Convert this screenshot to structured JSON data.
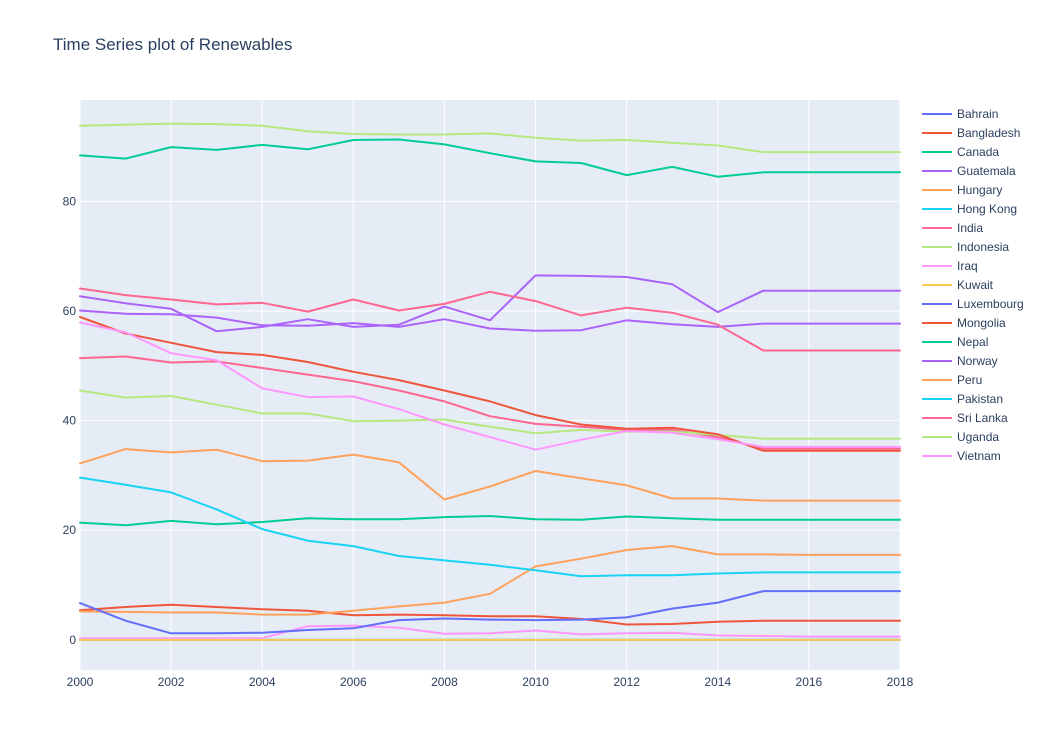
{
  "chart_data": {
    "type": "line",
    "title": "Time Series plot of Renewables",
    "xlabel": "",
    "ylabel": "",
    "xlim": [
      2000,
      2018
    ],
    "ylim": [
      -5.5,
      98.5
    ],
    "x_ticks": [
      2000,
      2002,
      2004,
      2006,
      2008,
      2010,
      2012,
      2014,
      2016,
      2018
    ],
    "y_ticks": [
      0,
      20,
      40,
      60,
      80
    ],
    "grid": true,
    "legend_position": "right",
    "x": [
      2000,
      2001,
      2002,
      2003,
      2004,
      2005,
      2006,
      2007,
      2008,
      2009,
      2010,
      2011,
      2012,
      2013,
      2014,
      2015,
      2016,
      2017,
      2018
    ],
    "series": [
      {
        "name": "Bahrain",
        "color": "#636efa",
        "values": [
          0,
          0,
          0,
          0,
          0,
          0,
          0,
          0,
          0,
          0,
          0,
          0,
          0,
          0,
          0,
          0,
          0,
          0,
          0
        ]
      },
      {
        "name": "Bangladesh",
        "color": "#EF553B",
        "values": [
          5.4,
          6.0,
          6.4,
          6.0,
          5.6,
          5.3,
          4.5,
          4.6,
          4.5,
          4.3,
          4.3,
          3.8,
          2.8,
          2.9,
          3.3,
          3.5,
          3.5,
          3.5,
          3.5
        ]
      },
      {
        "name": "Canada",
        "color": "#00cc96",
        "values": [
          88.4,
          87.8,
          89.9,
          89.4,
          90.3,
          89.5,
          91.2,
          91.3,
          90.4,
          88.8,
          87.3,
          87.0,
          84.8,
          86.3,
          84.5,
          85.3,
          85.3,
          85.3,
          85.3
        ]
      },
      {
        "name": "Guatemala",
        "color": "#ab63fa",
        "values": [
          60.1,
          59.5,
          59.4,
          58.8,
          57.4,
          57.3,
          57.8,
          57.1,
          58.5,
          56.8,
          56.4,
          56.5,
          58.3,
          57.6,
          57.1,
          57.7,
          57.7,
          57.7,
          57.7
        ]
      },
      {
        "name": "Hungary",
        "color": "#FFA15A",
        "values": [
          5.2,
          5.1,
          5.0,
          5.0,
          4.6,
          4.6,
          5.3,
          6.1,
          6.8,
          8.4,
          13.4,
          14.8,
          16.4,
          17.1,
          15.6,
          15.6,
          15.5,
          15.5,
          15.5
        ]
      },
      {
        "name": "Hong Kong",
        "color": "#19d3f3",
        "values": [
          0,
          0,
          0,
          0,
          0,
          0,
          0,
          0,
          0,
          0,
          0,
          0,
          0,
          0,
          0,
          0,
          0,
          0,
          0
        ]
      },
      {
        "name": "India",
        "color": "#FF6692",
        "values": [
          51.4,
          51.7,
          50.6,
          50.8,
          49.6,
          48.4,
          47.2,
          45.5,
          43.5,
          40.8,
          39.4,
          38.9,
          38.3,
          38.3,
          37.0,
          34.9,
          34.9,
          34.9,
          34.9
        ]
      },
      {
        "name": "Indonesia",
        "color": "#B6E880",
        "values": [
          45.5,
          44.2,
          44.5,
          42.9,
          41.3,
          41.3,
          39.9,
          40.0,
          40.2,
          38.9,
          37.7,
          38.3,
          38.0,
          38.0,
          37.4,
          36.7,
          36.7,
          36.7,
          36.7
        ]
      },
      {
        "name": "Iraq",
        "color": "#FF97FF",
        "values": [
          0.3,
          0.3,
          0.3,
          0.3,
          0.3,
          2.5,
          2.6,
          2.2,
          1.1,
          1.2,
          1.7,
          1.0,
          1.2,
          1.3,
          0.8,
          0.7,
          0.6,
          0.6,
          0.6
        ]
      },
      {
        "name": "Kuwait",
        "color": "#FECB52",
        "values": [
          0,
          0,
          0,
          0,
          0,
          0,
          0,
          0,
          0,
          0,
          0,
          0,
          0,
          0,
          0,
          0,
          0,
          0,
          0
        ]
      },
      {
        "name": "Luxembourg",
        "color": "#636efa",
        "values": [
          6.7,
          3.5,
          1.2,
          1.2,
          1.3,
          1.8,
          2.1,
          3.6,
          3.9,
          3.7,
          3.6,
          3.7,
          4.1,
          5.7,
          6.8,
          8.9,
          8.9,
          8.9,
          8.9
        ]
      },
      {
        "name": "Mongolia",
        "color": "#EF553B",
        "values": [
          58.9,
          55.9,
          54.2,
          52.5,
          52.0,
          50.7,
          48.9,
          47.4,
          45.5,
          43.5,
          41.0,
          39.3,
          38.5,
          38.7,
          37.5,
          34.5,
          34.5,
          34.5,
          34.5
        ]
      },
      {
        "name": "Nepal",
        "color": "#00cc96",
        "values": [
          21.4,
          20.9,
          21.7,
          21.1,
          21.5,
          22.2,
          22.0,
          22.0,
          22.4,
          22.6,
          22.0,
          21.9,
          22.5,
          22.2,
          21.9,
          21.9,
          21.9,
          21.9,
          21.9
        ]
      },
      {
        "name": "Norway",
        "color": "#ab63fa",
        "values": [
          62.7,
          61.4,
          60.4,
          56.3,
          57.1,
          58.5,
          57.1,
          57.5,
          60.8,
          58.3,
          66.5,
          66.4,
          66.2,
          64.9,
          59.8,
          63.7,
          63.7,
          63.7,
          63.7
        ]
      },
      {
        "name": "Peru",
        "color": "#FFA15A",
        "values": [
          32.2,
          34.8,
          34.2,
          34.7,
          32.6,
          32.7,
          33.8,
          32.4,
          25.6,
          28.0,
          30.8,
          29.5,
          28.2,
          25.8,
          25.8,
          25.4,
          25.4,
          25.4,
          25.4
        ]
      },
      {
        "name": "Pakistan",
        "color": "#19d3f3",
        "values": [
          29.6,
          28.3,
          26.9,
          23.8,
          20.2,
          18.1,
          17.1,
          15.3,
          14.5,
          13.7,
          12.7,
          11.6,
          11.8,
          11.8,
          12.1,
          12.3,
          12.3,
          12.3,
          12.3
        ]
      },
      {
        "name": "Sri Lanka",
        "color": "#FF6692",
        "values": [
          64.1,
          62.9,
          62.1,
          61.2,
          61.5,
          59.9,
          62.1,
          60.1,
          61.3,
          63.5,
          61.8,
          59.2,
          60.6,
          59.7,
          57.5,
          52.8,
          52.8,
          52.8,
          52.8
        ]
      },
      {
        "name": "Uganda",
        "color": "#B6E880",
        "values": [
          93.8,
          94.0,
          94.2,
          94.1,
          93.8,
          92.8,
          92.3,
          92.2,
          92.2,
          92.4,
          91.6,
          91.1,
          91.2,
          90.7,
          90.2,
          89.0,
          89.0,
          89.0,
          89.0
        ]
      },
      {
        "name": "Vietnam",
        "color": "#FF97FF",
        "values": [
          57.9,
          56.1,
          52.3,
          51.0,
          45.9,
          44.3,
          44.4,
          42.1,
          39.3,
          37.0,
          34.7,
          36.5,
          38.1,
          37.8,
          36.6,
          35.2,
          35.2,
          35.2,
          35.2
        ]
      }
    ]
  }
}
